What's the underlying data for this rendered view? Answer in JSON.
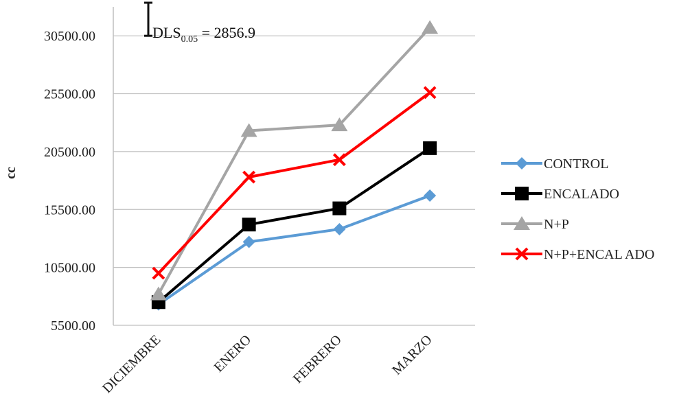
{
  "chart_data": {
    "type": "line",
    "title": "",
    "xlabel": "",
    "ylabel": "cc",
    "categories": [
      "DICIEMBRE",
      "ENERO",
      "FEBRERO",
      "MARZO"
    ],
    "y_ticks": [
      "5500.00",
      "10500.00",
      "15500.00",
      "20500.00",
      "25500.00",
      "30500.00"
    ],
    "ylim": [
      5500,
      33000
    ],
    "grid": true,
    "legend_position": "right",
    "series": [
      {
        "name": "CONTROL",
        "color": "#5B9BD5",
        "marker": "diamond",
        "values": [
          7300,
          12700,
          13800,
          16700
        ]
      },
      {
        "name": "ENCALADO",
        "color": "#000000",
        "marker": "square",
        "values": [
          7500,
          14200,
          15600,
          20800
        ]
      },
      {
        "name": "N+P",
        "color": "#A5A5A5",
        "marker": "triangle",
        "values": [
          8200,
          22300,
          22800,
          31200
        ]
      },
      {
        "name": "N+P+ENCAL ADO",
        "color": "#FF0000",
        "marker": "x",
        "values": [
          10000,
          18300,
          19800,
          25600
        ]
      }
    ],
    "annotation": {
      "label_main": "DLS",
      "label_sub": "0.05",
      "label_rest": " = 2856.9",
      "value": 2856.9
    }
  }
}
